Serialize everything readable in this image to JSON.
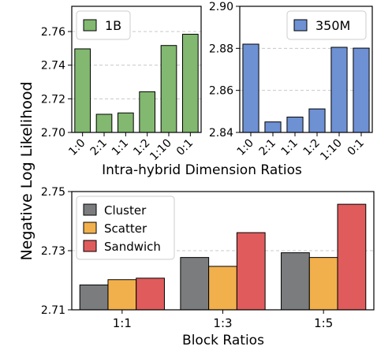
{
  "figure": {
    "ylabel": "Negative Log Likelihood"
  },
  "chart_data": [
    {
      "type": "bar",
      "categories": [
        "1:0",
        "2:1",
        "1:1",
        "1:2",
        "1:10",
        "0:1"
      ],
      "series": [
        {
          "name": "1B",
          "values": [
            2.7497,
            2.7108,
            2.7116,
            2.7242,
            2.7517,
            2.7584
          ]
        }
      ],
      "ylim": [
        2.7,
        2.775
      ],
      "yticks": [
        "2.70",
        "2.72",
        "2.74",
        "2.76"
      ],
      "xlabel": "",
      "grid": true,
      "color": "#82b870",
      "legend": "top-left"
    },
    {
      "type": "bar",
      "categories": [
        "1:0",
        "2:1",
        "1:1",
        "1:2",
        "1:10",
        "0:1"
      ],
      "series": [
        {
          "name": "350M",
          "values": [
            2.882,
            2.845,
            2.8473,
            2.8512,
            2.8805,
            2.8801
          ]
        }
      ],
      "ylim": [
        2.84,
        2.9
      ],
      "yticks": [
        "2.84",
        "2.86",
        "2.88",
        "2.90"
      ],
      "xlabel": "",
      "grid": true,
      "color": "#6e91d4",
      "legend": "top-right"
    },
    {
      "type": "bar",
      "categories": [
        "1:1",
        "1:3",
        "1:5"
      ],
      "series": [
        {
          "name": "Cluster",
          "values": [
            2.7184,
            2.7277,
            2.7293
          ],
          "color": "#7a7c7e"
        },
        {
          "name": "Scatter",
          "values": [
            2.7202,
            2.7247,
            2.7277
          ],
          "color": "#f2b04c"
        },
        {
          "name": "Sandwich",
          "values": [
            2.7207,
            2.7361,
            2.7457
          ],
          "color": "#e05c5c"
        }
      ],
      "ylim": [
        2.71,
        2.75
      ],
      "yticks": [
        "2.71",
        "2.73",
        "2.75"
      ],
      "xlabel": "Block Ratios",
      "grid": true,
      "legend": "top-left"
    }
  ],
  "shared_xlabel_top": "Intra-hybrid Dimension Ratios"
}
